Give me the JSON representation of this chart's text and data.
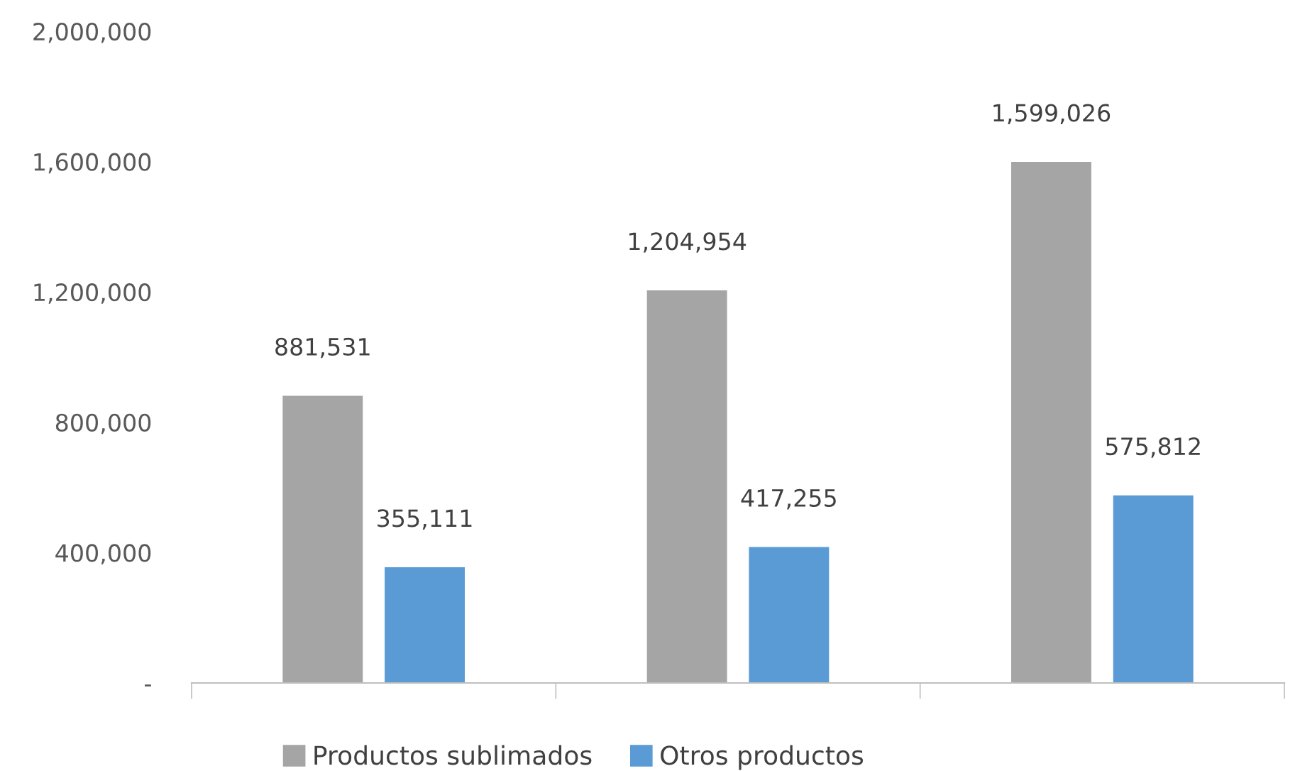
{
  "chart_data": {
    "type": "bar",
    "categories": [
      null,
      null,
      null
    ],
    "series": [
      {
        "name": "Productos sublimados",
        "color": "#a5a5a5",
        "values": [
          881531,
          1204954,
          1599026
        ],
        "value_labels": [
          "881,531",
          "1,204,954",
          "1,599,026"
        ]
      },
      {
        "name": "Otros productos",
        "color": "#5b9bd5",
        "values": [
          355111,
          417255,
          575812
        ],
        "value_labels": [
          "355,111",
          "417,255",
          "575,812"
        ]
      }
    ],
    "ylim": [
      0,
      2000000
    ],
    "yticks": [
      {
        "value": 0,
        "label": "-"
      },
      {
        "value": 400000,
        "label": "400,000"
      },
      {
        "value": 800000,
        "label": "800,000"
      },
      {
        "value": 1200000,
        "label": "1,200,000"
      },
      {
        "value": 1600000,
        "label": "1,600,000"
      },
      {
        "value": 2000000,
        "label": "2,000,000"
      }
    ],
    "grid": false,
    "legend": "bottom"
  }
}
